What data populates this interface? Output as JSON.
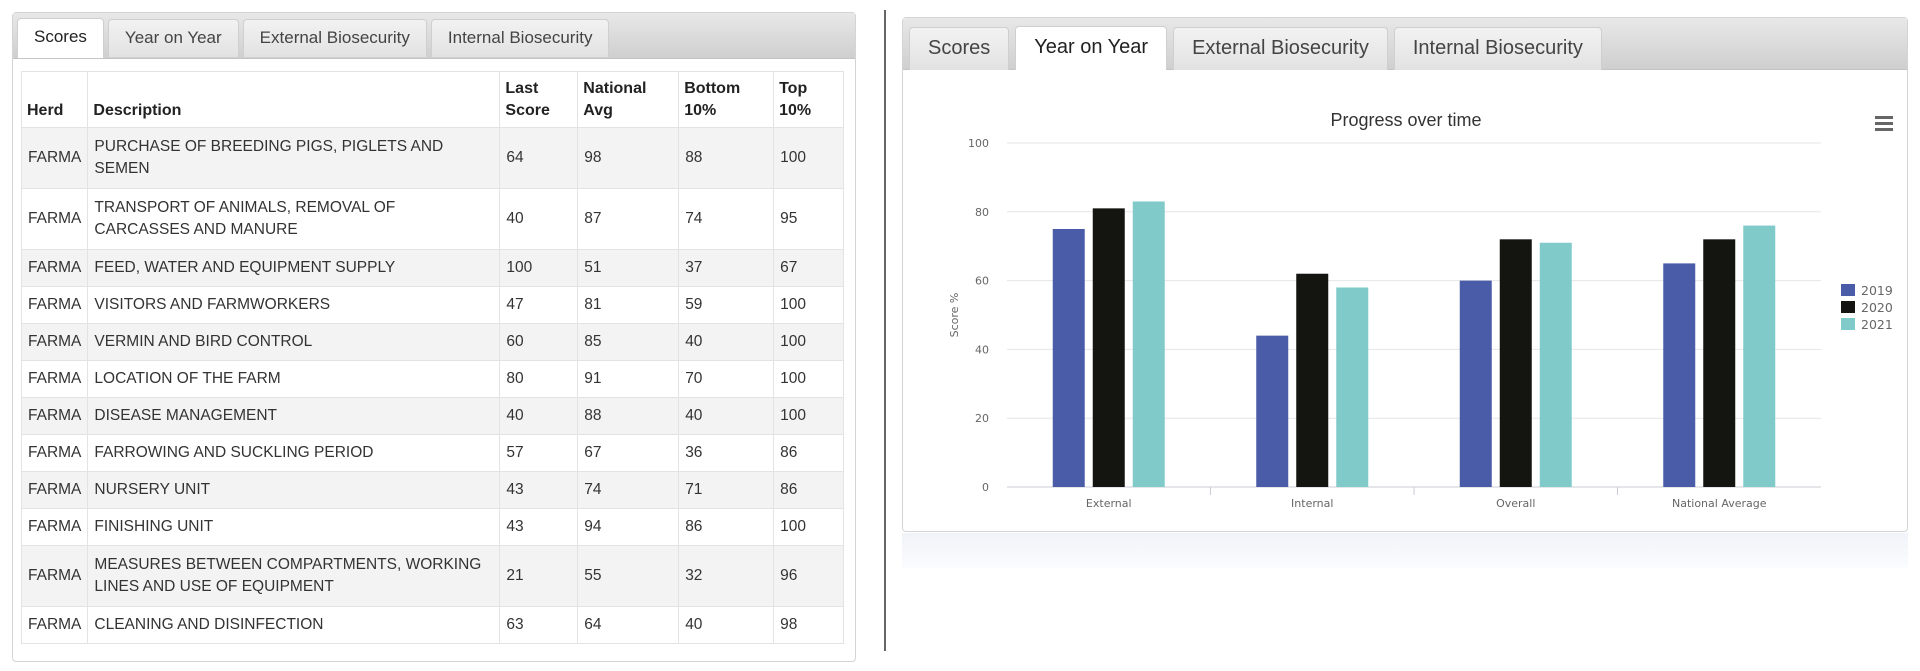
{
  "left_panel": {
    "tabs": [
      {
        "label": "Scores",
        "active": true
      },
      {
        "label": "Year on Year",
        "active": false
      },
      {
        "label": "External Biosecurity",
        "active": false
      },
      {
        "label": "Internal Biosecurity",
        "active": false
      }
    ],
    "table": {
      "headers": {
        "herd": "Herd",
        "description": "Description",
        "last_score_1": "Last",
        "last_score_2": "Score",
        "national_1": "National",
        "national_2": "Avg",
        "bottom_1": "Bottom",
        "bottom_2": "10%",
        "top_1": "Top",
        "top_2": "10%"
      },
      "rows": [
        {
          "herd": "FARMA",
          "desc1": "PURCHASE OF BREEDING PIGS, PIGLETS AND",
          "desc2": "SEMEN",
          "last": "64",
          "nat": "98",
          "bottom": "88",
          "top": "100"
        },
        {
          "herd": "FARMA",
          "desc1": "TRANSPORT OF ANIMALS, REMOVAL OF",
          "desc2": "CARCASSES AND MANURE",
          "last": "40",
          "nat": "87",
          "bottom": "74",
          "top": "95"
        },
        {
          "herd": "FARMA",
          "desc1": "FEED, WATER AND EQUIPMENT SUPPLY",
          "desc2": "",
          "last": "100",
          "nat": "51",
          "bottom": "37",
          "top": "67"
        },
        {
          "herd": "FARMA",
          "desc1": "VISITORS AND FARMWORKERS",
          "desc2": "",
          "last": "47",
          "nat": "81",
          "bottom": "59",
          "top": "100"
        },
        {
          "herd": "FARMA",
          "desc1": "VERMIN AND BIRD CONTROL",
          "desc2": "",
          "last": "60",
          "nat": "85",
          "bottom": "40",
          "top": "100"
        },
        {
          "herd": "FARMA",
          "desc1": "LOCATION OF THE FARM",
          "desc2": "",
          "last": "80",
          "nat": "91",
          "bottom": "70",
          "top": "100"
        },
        {
          "herd": "FARMA",
          "desc1": "DISEASE MANAGEMENT",
          "desc2": "",
          "last": "40",
          "nat": "88",
          "bottom": "40",
          "top": "100"
        },
        {
          "herd": "FARMA",
          "desc1": "FARROWING AND SUCKLING PERIOD",
          "desc2": "",
          "last": "57",
          "nat": "67",
          "bottom": "36",
          "top": "86"
        },
        {
          "herd": "FARMA",
          "desc1": "NURSERY UNIT",
          "desc2": "",
          "last": "43",
          "nat": "74",
          "bottom": "71",
          "top": "86"
        },
        {
          "herd": "FARMA",
          "desc1": "FINISHING UNIT",
          "desc2": "",
          "last": "43",
          "nat": "94",
          "bottom": "86",
          "top": "100"
        },
        {
          "herd": "FARMA",
          "desc1": "MEASURES BETWEEN COMPARTMENTS, WORKING",
          "desc2": "LINES AND USE OF EQUIPMENT",
          "last": "21",
          "nat": "55",
          "bottom": "32",
          "top": "96"
        },
        {
          "herd": "FARMA",
          "desc1": "CLEANING AND DISINFECTION",
          "desc2": "",
          "last": "63",
          "nat": "64",
          "bottom": "40",
          "top": "98"
        }
      ]
    }
  },
  "right_panel": {
    "tabs": [
      {
        "label": "Scores",
        "active": false
      },
      {
        "label": "Year on Year",
        "active": true
      },
      {
        "label": "External Biosecurity",
        "active": false
      },
      {
        "label": "Internal Biosecurity",
        "active": false
      }
    ],
    "menu_icon": "hamburger-menu-icon"
  },
  "chart_data": {
    "type": "bar",
    "title": "Progress over time",
    "xlabel": "",
    "ylabel": "Score %",
    "ylim": [
      0,
      100
    ],
    "yticks": [
      0,
      20,
      40,
      60,
      80,
      100
    ],
    "grid": true,
    "legend_position": "right",
    "categories": [
      "External",
      "Internal",
      "Overall",
      "National Average"
    ],
    "series": [
      {
        "name": "2019",
        "color": "#4a5ba8",
        "values": [
          75,
          44,
          60,
          65
        ]
      },
      {
        "name": "2020",
        "color": "#141410",
        "values": [
          81,
          62,
          72,
          72
        ]
      },
      {
        "name": "2021",
        "color": "#80cbca",
        "values": [
          83,
          58,
          71,
          76
        ]
      }
    ]
  }
}
